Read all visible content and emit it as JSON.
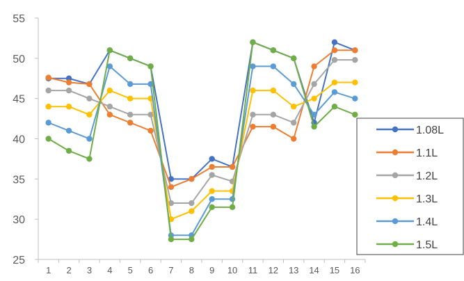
{
  "chart_data": {
    "type": "line",
    "title": "",
    "xlabel": "",
    "ylabel": "",
    "x": [
      1,
      2,
      3,
      4,
      5,
      6,
      7,
      8,
      9,
      10,
      11,
      12,
      13,
      14,
      15,
      16
    ],
    "x_tick_labels": [
      "1",
      "2",
      "3",
      "4",
      "5",
      "6",
      "7",
      "8",
      "9",
      "10",
      "11",
      "12",
      "13",
      "14",
      "15",
      "16"
    ],
    "ylim": [
      25,
      55
    ],
    "y_ticks": [
      25,
      30,
      35,
      40,
      45,
      50,
      55
    ],
    "y_tick_labels": [
      "25",
      "30",
      "35",
      "40",
      "45",
      "50",
      "55"
    ],
    "grid": false,
    "legend_position": "right",
    "series": [
      {
        "name": "1.08L",
        "color": "#4472C4",
        "values": [
          47.5,
          47.5,
          46.8,
          51,
          50,
          49,
          35,
          35,
          37.5,
          36.5,
          52,
          51,
          50,
          42,
          52,
          51
        ]
      },
      {
        "name": "1.1L",
        "color": "#ED7D31",
        "values": [
          47.6,
          47,
          46.8,
          43,
          42,
          41,
          34,
          35,
          36.5,
          36.5,
          41.5,
          41.5,
          40,
          49,
          51,
          51
        ]
      },
      {
        "name": "1.2L",
        "color": "#A5A5A5",
        "values": [
          46,
          46,
          45,
          44,
          43,
          43,
          32,
          32,
          35.5,
          34.7,
          43,
          43,
          42,
          46.8,
          49.8,
          49.8
        ]
      },
      {
        "name": "1.3L",
        "color": "#FFC000",
        "values": [
          44,
          44,
          43,
          46,
          45,
          45,
          30,
          31,
          33.5,
          33.5,
          46,
          46,
          44,
          45,
          47,
          47
        ]
      },
      {
        "name": "1.4L",
        "color": "#5B9BD5",
        "values": [
          42,
          41,
          40,
          49,
          46.8,
          46.8,
          28,
          28,
          32.5,
          32.5,
          49,
          49,
          46.8,
          43,
          45.8,
          45
        ]
      },
      {
        "name": "1.5L",
        "color": "#70AD47",
        "values": [
          40,
          38.5,
          37.5,
          51,
          50,
          49,
          27.5,
          27.5,
          31.5,
          31.5,
          52,
          51,
          50,
          41.5,
          44,
          43
        ]
      }
    ]
  }
}
